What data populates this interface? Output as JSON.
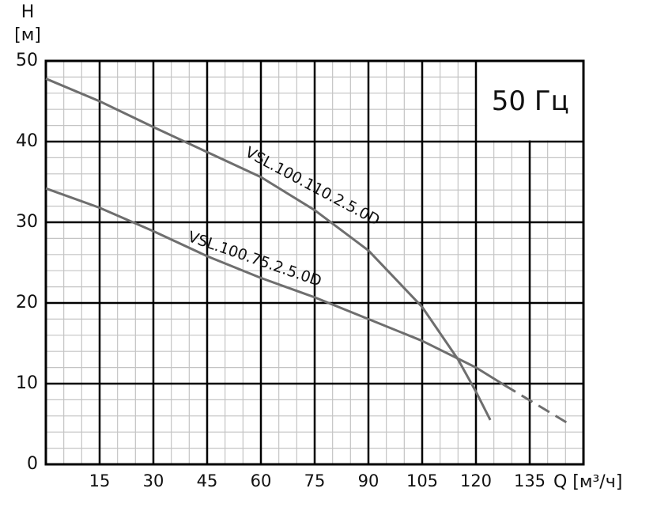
{
  "chart_data": {
    "type": "line",
    "title": "50 Гц",
    "xlabel": "Q [м³/ч]",
    "ylabel": "H",
    "ylabel_unit": "[м]",
    "xlim": [
      0,
      150
    ],
    "ylim": [
      0,
      50
    ],
    "xticks": [
      15,
      30,
      45,
      60,
      75,
      90,
      105,
      120,
      135
    ],
    "yticks": [
      0,
      10,
      20,
      30,
      40,
      50
    ],
    "grid": true,
    "minor_grid": {
      "x": 5,
      "y": 2
    },
    "series": [
      {
        "name": "VSL.100.110.2.5.0D",
        "color": "#6e6e6e",
        "x": [
          0,
          15,
          30,
          45,
          60,
          75,
          90,
          105,
          115,
          120,
          124
        ],
        "values": [
          47.8,
          45,
          41.8,
          38.7,
          35.6,
          31.5,
          26.5,
          19.5,
          13,
          9,
          5.5
        ]
      },
      {
        "name": "VSL.100.75.2.5.0D",
        "color": "#6e6e6e",
        "x": [
          0,
          15,
          30,
          45,
          60,
          75,
          90,
          105,
          120,
          128,
          146
        ],
        "values": [
          34.2,
          31.8,
          28.9,
          25.8,
          23.1,
          20.7,
          18,
          15.3,
          12,
          9.8,
          5
        ],
        "dashed_from_x": 128
      }
    ]
  }
}
